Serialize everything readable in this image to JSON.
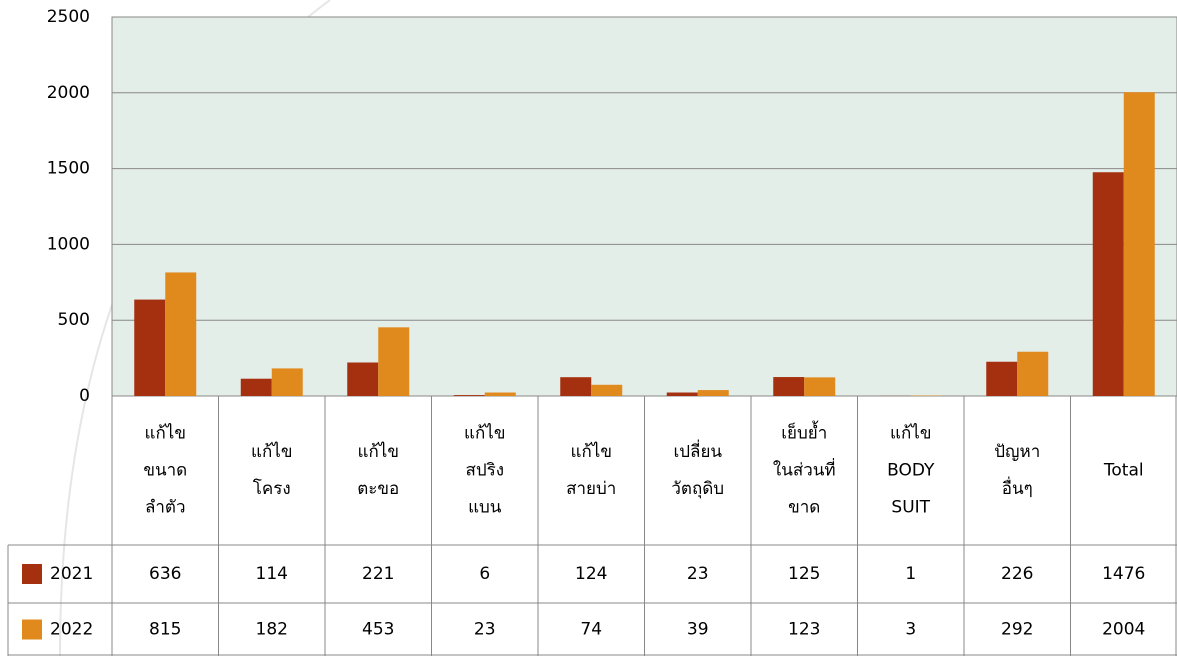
{
  "chart_data": {
    "type": "bar",
    "categories": [
      [
        "แก้ไข",
        "ขนาด",
        "ลำตัว"
      ],
      [
        "แก้ไข",
        "โครง"
      ],
      [
        "แก้ไข",
        "ตะขอ"
      ],
      [
        "แก้ไข",
        "สปริง",
        "แบน"
      ],
      [
        "แก้ไข",
        "สายบ่า"
      ],
      [
        "เปลี่ยน",
        "วัตถุดิบ"
      ],
      [
        "เย็บย้ำ",
        "ในส่วนที่",
        "ขาด"
      ],
      [
        "แก้ไข",
        "BODY",
        "SUIT"
      ],
      [
        "ปัญหา",
        "อื่นๆ"
      ],
      [
        "Total"
      ]
    ],
    "series": [
      {
        "name": "2021",
        "color": "#a5300f",
        "values": [
          636,
          114,
          221,
          6,
          124,
          23,
          125,
          1,
          226,
          1476
        ]
      },
      {
        "name": "2022",
        "color": "#e08a1e",
        "values": [
          815,
          182,
          453,
          23,
          74,
          39,
          123,
          3,
          292,
          2004
        ]
      }
    ],
    "ylim": [
      0,
      2500
    ],
    "yticks": [
      0,
      500,
      1000,
      1500,
      2000,
      2500
    ],
    "grid": true
  }
}
